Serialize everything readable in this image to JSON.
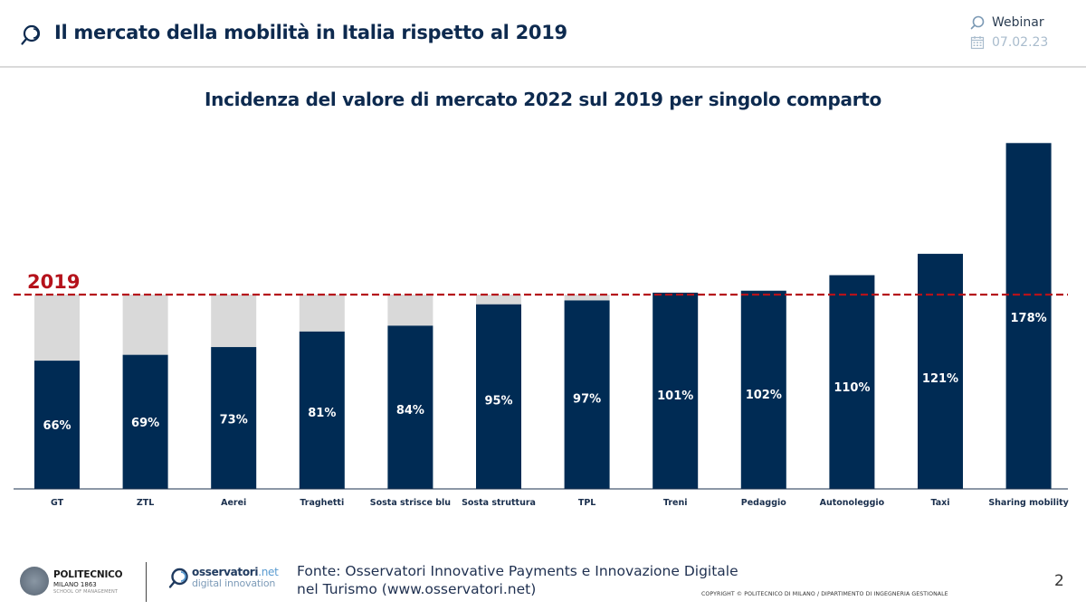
{
  "header": {
    "title": "Il mercato della mobilità in Italia rispetto al 2019",
    "title_icon": "magnifier-icon",
    "meta": {
      "event_label": "Webinar",
      "event_icon": "magnifier-icon",
      "date": "07.02.23",
      "date_icon": "calendar-icon"
    }
  },
  "colors": {
    "primary_navy": "#002b54",
    "remainder_grey": "#d9d9d9",
    "reference_red": "#b5121b",
    "title_navy": "#0d2a4f"
  },
  "chart_data": {
    "type": "bar",
    "title": "Incidenza del valore di mercato 2022 sul 2019 per singolo comparto",
    "xlabel": "",
    "ylabel": "",
    "categories": [
      "GT",
      "ZTL",
      "Aerei",
      "Traghetti",
      "Sosta strisce blu",
      "Sosta struttura",
      "TPL",
      "Treni",
      "Pedaggio",
      "Autonoleggio",
      "Taxi",
      "Sharing mobility"
    ],
    "series": [
      {
        "name": "2022 vs 2019",
        "values": [
          66,
          69,
          73,
          81,
          84,
          95,
          97,
          101,
          102,
          110,
          121,
          178
        ],
        "unit": "%"
      }
    ],
    "data_labels": [
      "66%",
      "69%",
      "73%",
      "81%",
      "84%",
      "95%",
      "97%",
      "101%",
      "102%",
      "110%",
      "121%",
      "178%"
    ],
    "reference_line": {
      "value": 100,
      "label": "2019",
      "style": "dashed"
    },
    "gap_to_reference_shown": true,
    "ylim": [
      0,
      180
    ],
    "grid": false,
    "legend": "none"
  },
  "footer": {
    "polimi": {
      "name": "POLITECNICO",
      "sub": "MILANO 1863",
      "school": "SCHOOL OF MANAGEMENT"
    },
    "osservatori": {
      "name": "osservatori",
      "tld": ".net",
      "tagline": "digital innovation"
    },
    "source_line1": "Fonte: Osservatori Innovative Payments e Innovazione Digitale",
    "source_line2": "nel Turismo (www.osservatori.net)",
    "copyright": "COPYRIGHT © POLITECNICO DI MILANO / DIPARTIMENTO DI INGEGNERIA GESTIONALE",
    "page_number": "2"
  }
}
